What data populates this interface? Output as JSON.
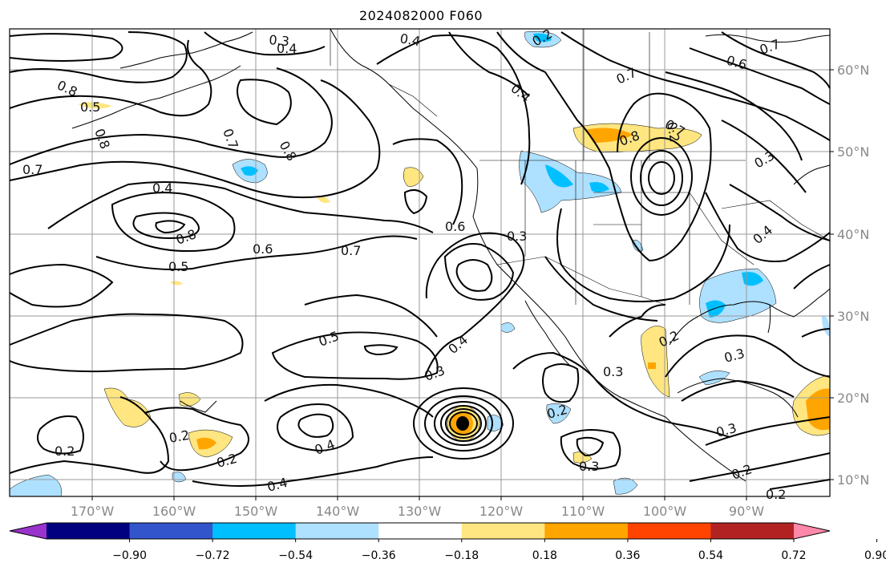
{
  "title": "2024082000 F060",
  "longitude_labels": [
    "170°W",
    "160°W",
    "150°W",
    "140°W",
    "130°W",
    "120°W",
    "110°W",
    "100°W",
    "90°W"
  ],
  "latitude_labels": [
    "60°N",
    "50°N",
    "40°N",
    "30°N",
    "20°N",
    "10°N"
  ],
  "colorbar": {
    "tick_labels": [
      "−0.90",
      "−0.72",
      "−0.54",
      "−0.36",
      "−0.18",
      "0.18",
      "0.36",
      "0.54",
      "0.72",
      "0.90"
    ],
    "colors": [
      "#9933cc",
      "#000080",
      "#3355cc",
      "#00bfff",
      "#aee0ff",
      "#ffffff",
      "#ffe680",
      "#ffa500",
      "#ff4400",
      "#b22222",
      "#ff88aa"
    ]
  },
  "contour_labels": [
    "0.3",
    "0.4",
    "0.4",
    "0.2",
    "0.6",
    "0.7",
    "0.8",
    "0.7",
    "0.4",
    "0.5",
    "0.8",
    "0.7",
    "0.8",
    "0.7",
    "0.4",
    "0.8",
    "0.7",
    "0.6",
    "0.5",
    "0.7",
    "0.6",
    "0.3",
    "0.8",
    "0.4",
    "0.5",
    "0.4",
    "0.3",
    "0.2",
    "0.2",
    "0.2",
    "0.4",
    "0.2",
    "0.3",
    "0.2",
    "0.3",
    "0.2",
    "0.3",
    "0.2",
    "0.3",
    "0.2",
    "0.4",
    "0.3"
  ]
}
